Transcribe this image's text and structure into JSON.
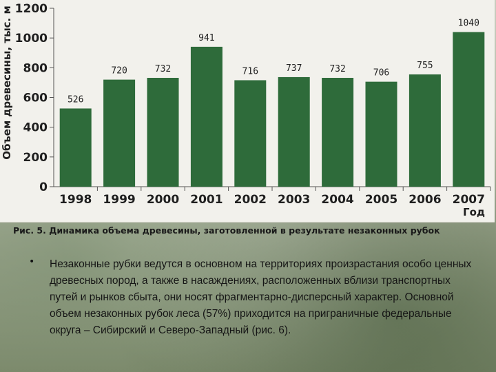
{
  "chart_data": {
    "type": "bar",
    "categories": [
      "1998",
      "1999",
      "2000",
      "2001",
      "2002",
      "2003",
      "2004",
      "2005",
      "2006",
      "2007"
    ],
    "values": [
      526,
      720,
      732,
      941,
      716,
      737,
      732,
      706,
      755,
      1040
    ],
    "data_labels": [
      "526",
      "720",
      "732",
      "941",
      "716",
      "737",
      "732",
      "706",
      "755",
      "1040"
    ],
    "ylabel": "Объем древесины, тыс. м",
    "xlabel": "Год",
    "ylim": [
      0,
      1200
    ],
    "yticks": [
      0,
      200,
      400,
      600,
      800,
      1000,
      1200
    ],
    "ytick_labels": [
      "0",
      "200",
      "400",
      "600",
      "800",
      "1000",
      "1200"
    ],
    "grid": false,
    "bar_color": "#2e6b3a"
  },
  "caption": "Рис. 5. Динамика объема древесины, заготовленной в результате незаконных рубок",
  "bullet": {
    "marker": "•",
    "text": "Незаконные рубки ведутся в основном на территориях произрастания особо ценных древесных пород, а также в насаждениях, расположенных вблизи транспортных путей и рынков сбыта, они носят фрагментарно-дисперсный характер. Основной объем незаконных рубок леса (57%) приходится на приграничные федеральные округа – Сибирский и Северо-Западный (рис. 6)."
  }
}
